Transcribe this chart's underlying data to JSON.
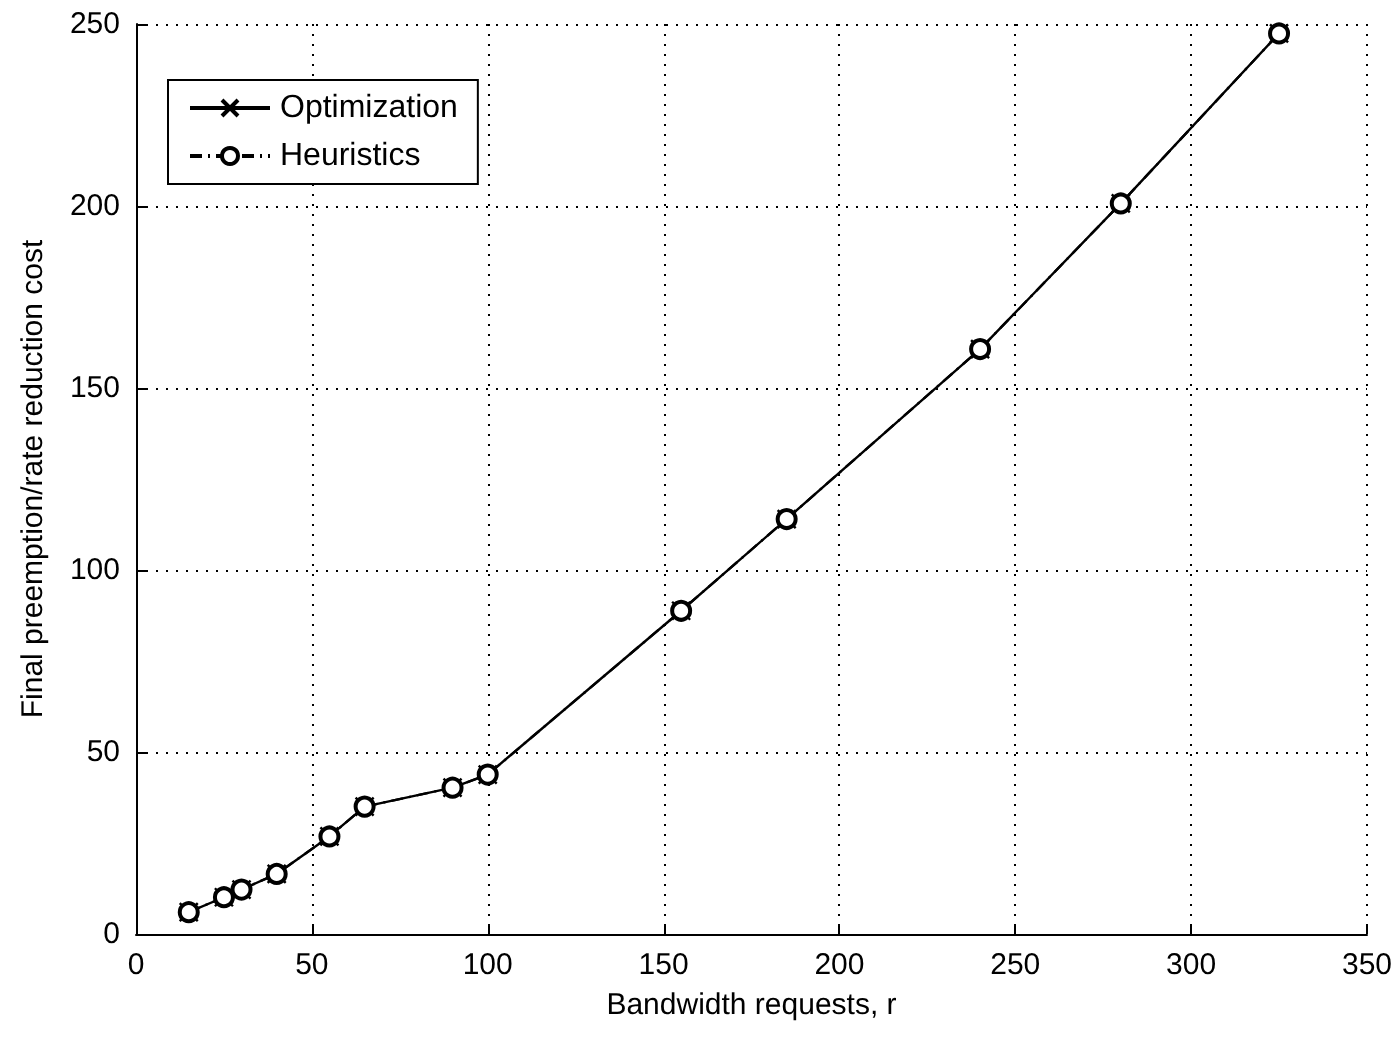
{
  "chart_data": {
    "type": "line",
    "xlabel": "Bandwidth requests, r",
    "ylabel": "Final preemption/rate reduction cost",
    "x": [
      15,
      25,
      30,
      40,
      55,
      65,
      90,
      100,
      155,
      185,
      240,
      280,
      325
    ],
    "series": [
      {
        "name": "Optimization",
        "color": "#000000",
        "marker": "cross",
        "line_style": "solid",
        "values": [
          6.0,
          10.1,
          12.2,
          16.5,
          26.8,
          35.0,
          40.2,
          43.8,
          88.8,
          114.0,
          160.7,
          200.7,
          247.4
        ]
      },
      {
        "name": "Heuristics",
        "color": "#000000",
        "marker": "circle",
        "line_style": "dashed",
        "values": [
          6.0,
          10.1,
          12.2,
          16.5,
          26.8,
          35.0,
          40.2,
          43.8,
          88.8,
          114.0,
          160.7,
          200.7,
          247.4
        ]
      }
    ],
    "xlim": [
      0,
      350
    ],
    "xticks": [
      0,
      50,
      100,
      150,
      200,
      250,
      300,
      350
    ],
    "ylim": [
      0,
      250
    ],
    "yticks": [
      0,
      50,
      100,
      150,
      200,
      250
    ],
    "grid": true,
    "legend": "top left"
  }
}
